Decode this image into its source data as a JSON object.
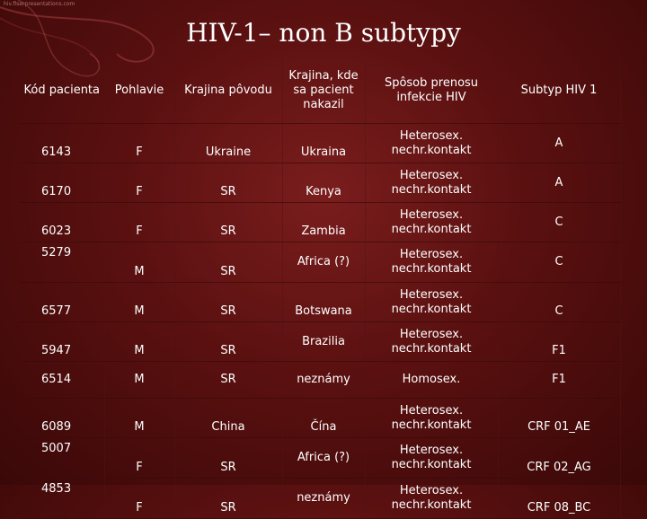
{
  "watermark": "hiv.fiserpresentations.com",
  "title": "HIV-1– non B subtypy",
  "headers": [
    "Kód pacienta",
    "Pohlavie",
    "Krajina pôvodu",
    "Krajina, kde sa pacient nakazil",
    "Spôsob prenosu infekcie HIV",
    "Subtyp HIV 1"
  ],
  "rows": [
    [
      "6143",
      "F",
      "Ukraine",
      "Ukraina",
      "Heterosex. nechr.kontakt",
      "A"
    ],
    [
      "6170",
      "F",
      "SR",
      "Kenya",
      "Heterosex. nechr.kontakt",
      "A"
    ],
    [
      "6023",
      "F",
      "SR",
      "Zambia",
      "Heterosex. nechr.kontakt",
      "C"
    ],
    [
      "5279",
      "M",
      "SR",
      "Africa (?)",
      "Heterosex. nechr.kontakt",
      "C"
    ],
    [
      "6577",
      "M",
      "SR",
      "Botswana",
      "Heterosex. nechr.kontakt",
      "C"
    ],
    [
      "5947",
      "M",
      "SR",
      "Brazilia",
      "Heterosex. nechr.kontakt",
      "F1"
    ],
    [
      "6514",
      "M",
      "SR",
      "neznámy",
      "Homosex.",
      "F1"
    ],
    [
      "6089",
      "M",
      "China",
      "Čína",
      "Heterosex. nechr.kontakt",
      "CRF 01_AE"
    ],
    [
      "5007",
      "F",
      "SR",
      "Africa (?)",
      "Heterosex. nechr.kontakt",
      "CRF 02_AG"
    ],
    [
      "4853",
      "F",
      "SR",
      "neznámy",
      "Heterosex. nechr.kontakt",
      "CRF 08_BC"
    ]
  ]
}
